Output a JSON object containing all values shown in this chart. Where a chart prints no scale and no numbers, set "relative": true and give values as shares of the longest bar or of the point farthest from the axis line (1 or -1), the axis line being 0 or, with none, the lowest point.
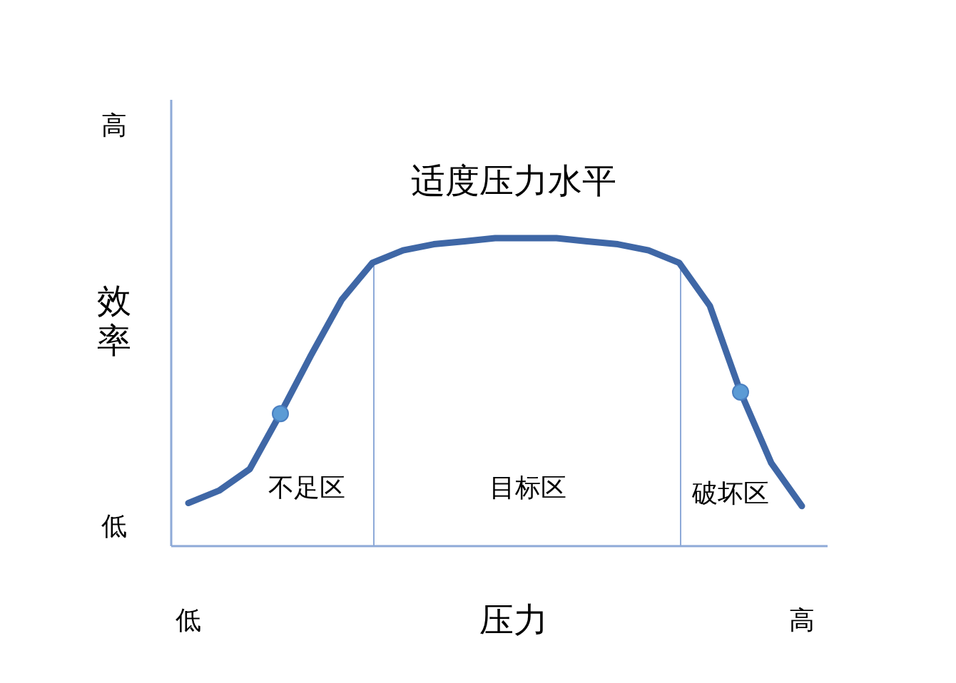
{
  "chart_data": {
    "type": "line",
    "xlabel": "压力",
    "ylabel": "效率",
    "relative": true,
    "categories": [
      "低",
      null,
      null,
      null,
      null,
      null,
      null,
      null,
      null,
      null,
      null,
      null,
      null,
      null,
      null,
      null,
      null,
      null,
      null,
      null,
      "高"
    ],
    "series": [
      {
        "color": "#3f67a6",
        "values": [
          0.14,
          0.18,
          0.25,
          0.43,
          0.62,
          0.8,
          0.92,
          0.96,
          0.98,
          0.99,
          1,
          1,
          1,
          0.99,
          0.98,
          0.96,
          0.92,
          0.78,
          0.5,
          0.27,
          0.13
        ]
      },
      {
        "type": "scatter",
        "color": "#5b9bd5",
        "values": [
          null,
          null,
          null,
          0.43,
          null,
          null,
          null,
          null,
          null,
          null,
          null,
          null,
          null,
          null,
          null,
          null,
          null,
          null,
          0.5,
          null,
          null
        ]
      }
    ],
    "annotations": [
      "高",
      "低",
      "不足区",
      "目标区",
      "破坏区",
      "适度压力水平"
    ]
  }
}
